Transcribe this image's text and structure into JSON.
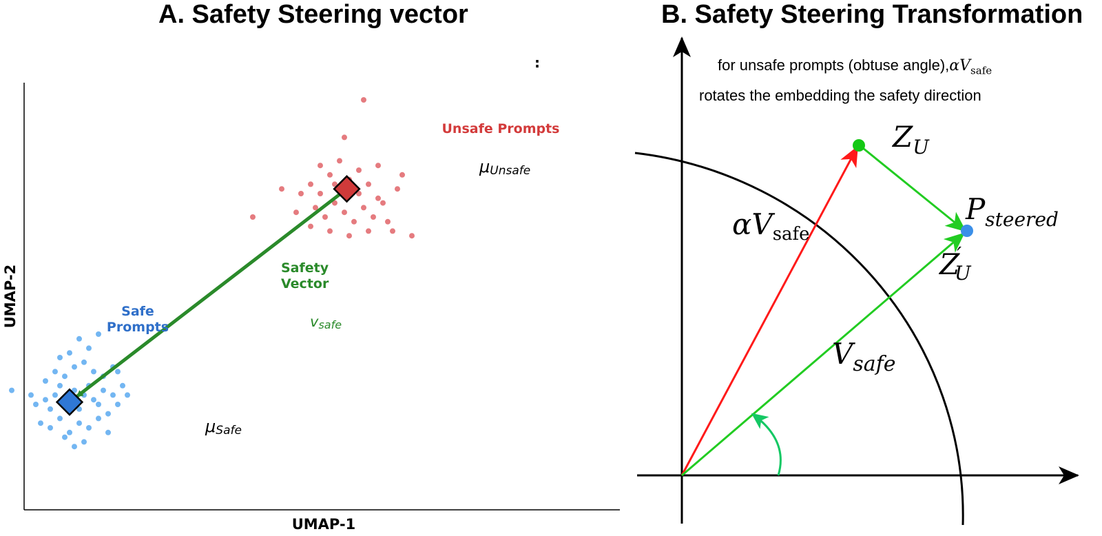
{
  "panel_a": {
    "title": "A. Safety Steering vector",
    "stray_mark": ":",
    "safe_label_line1": "Safe",
    "safe_label_line2": "Prompts",
    "unsafe_label": "Unsafe Prompts",
    "vector_label_line1": "Safety",
    "vector_label_line2": "Vector",
    "vector_symbol": "v",
    "vector_symbol_sub": "safe",
    "mu_safe": "μ",
    "mu_safe_sub": "Safe",
    "mu_unsafe": "μ",
    "mu_unsafe_sub": "Unsafe",
    "colors": {
      "safe": "#5aa9f0",
      "safe_center": "#2f78d6",
      "unsafe": "#e06468",
      "unsafe_center": "#d03a3a",
      "vector": "#2a8a2a"
    }
  },
  "chart_data": {
    "type": "scatter",
    "xlabel": "UMAP-1",
    "ylabel": "UMAP-2",
    "grid": false,
    "series": [
      {
        "name": "Safe Prompts",
        "points": [
          [
            -3.4,
            -0.2
          ],
          [
            -3.0,
            -0.3
          ],
          [
            -2.9,
            -0.5
          ],
          [
            -2.7,
            -0.4
          ],
          [
            -2.6,
            -0.6
          ],
          [
            -2.5,
            -0.3
          ],
          [
            -2.4,
            -0.1
          ],
          [
            -2.3,
            -0.4
          ],
          [
            -2.2,
            -0.5
          ],
          [
            -2.1,
            -0.2
          ],
          [
            -2.0,
            -0.6
          ],
          [
            -1.9,
            -0.3
          ],
          [
            -1.8,
            -0.1
          ],
          [
            -1.7,
            -0.4
          ],
          [
            -1.6,
            -0.5
          ],
          [
            -1.5,
            -0.2
          ],
          [
            -1.4,
            -0.7
          ],
          [
            -1.3,
            -0.3
          ],
          [
            -1.2,
            -0.5
          ],
          [
            -1.1,
            -0.1
          ],
          [
            -2.8,
            -0.9
          ],
          [
            -2.6,
            -1.0
          ],
          [
            -2.4,
            -0.8
          ],
          [
            -2.2,
            -1.1
          ],
          [
            -2.0,
            -0.9
          ],
          [
            -1.8,
            -1.0
          ],
          [
            -1.6,
            -0.8
          ],
          [
            -1.4,
            -1.1
          ],
          [
            -2.5,
            0.2
          ],
          [
            -2.3,
            0.1
          ],
          [
            -2.1,
            0.3
          ],
          [
            -1.9,
            0.4
          ],
          [
            -1.7,
            0.2
          ],
          [
            -1.5,
            0.1
          ],
          [
            -1.3,
            0.3
          ],
          [
            -2.2,
            0.6
          ],
          [
            -1.8,
            0.7
          ],
          [
            -2.0,
            0.9
          ],
          [
            -1.6,
            1.0
          ],
          [
            -2.4,
            0.5
          ],
          [
            -2.7,
            0.0
          ],
          [
            -1.2,
            0.2
          ],
          [
            -1.0,
            -0.3
          ],
          [
            -2.1,
            -1.4
          ],
          [
            -1.9,
            -1.3
          ],
          [
            -2.3,
            -1.2
          ]
        ]
      },
      {
        "name": "Unsafe Prompts",
        "points": [
          [
            2.8,
            4.2
          ],
          [
            3.0,
            4.0
          ],
          [
            3.2,
            4.4
          ],
          [
            3.4,
            4.1
          ],
          [
            3.6,
            4.3
          ],
          [
            3.8,
            4.0
          ],
          [
            4.0,
            4.2
          ],
          [
            4.2,
            3.9
          ],
          [
            2.9,
            3.7
          ],
          [
            3.1,
            3.5
          ],
          [
            3.3,
            3.8
          ],
          [
            3.5,
            3.6
          ],
          [
            3.7,
            3.4
          ],
          [
            3.9,
            3.7
          ],
          [
            4.1,
            3.5
          ],
          [
            4.3,
            3.8
          ],
          [
            3.0,
            4.6
          ],
          [
            3.4,
            4.7
          ],
          [
            3.8,
            4.5
          ],
          [
            4.2,
            4.6
          ],
          [
            2.6,
            4.0
          ],
          [
            2.5,
            3.6
          ],
          [
            2.8,
            3.3
          ],
          [
            3.2,
            3.2
          ],
          [
            3.6,
            3.1
          ],
          [
            4.0,
            3.2
          ],
          [
            4.4,
            3.4
          ],
          [
            4.6,
            4.1
          ],
          [
            4.7,
            4.4
          ],
          [
            2.2,
            4.1
          ],
          [
            1.6,
            3.5
          ],
          [
            3.5,
            5.2
          ],
          [
            3.9,
            6.0
          ],
          [
            4.9,
            3.1
          ],
          [
            4.5,
            3.2
          ],
          [
            3.3,
            4.2
          ]
        ]
      }
    ],
    "centroids": {
      "safe": [
        -2.2,
        -0.45
      ],
      "unsafe": [
        3.55,
        4.1
      ]
    }
  },
  "panel_b": {
    "title": "B. Safety Steering Transformation",
    "caption_line1": "for unsafe prompts (obtuse  angle),",
    "caption_math": "αV",
    "caption_math_sub": "safe",
    "caption_line2": "rotates the embedding the safety direction",
    "label_zu": "Z",
    "label_zu_sub": "U",
    "label_zu_prime": "Z",
    "label_zu_prime_sup": "′",
    "label_zu_prime_sub": "U",
    "label_p": "P",
    "label_p_sub": "steered",
    "label_alpha": "αV",
    "label_alpha_sub": "safe",
    "label_vsafe": "V",
    "label_vsafe_sub": "safe",
    "colors": {
      "alpha_vector": "#ff1a1a",
      "v_safe": "#22cc22",
      "p_point": "#3b8fe8",
      "zu_point": "#14c814",
      "angle_arc": "#14c864"
    }
  }
}
